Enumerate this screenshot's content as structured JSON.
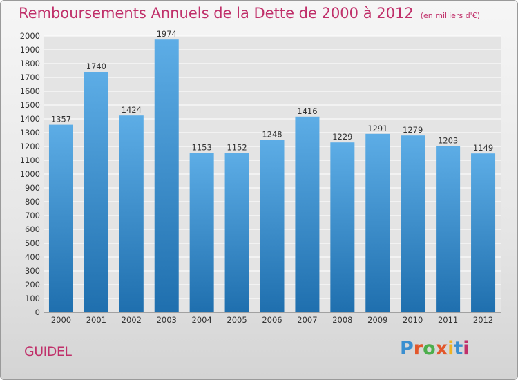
{
  "header": {
    "title": "Remboursements Annuels de la Dette de 2000 à 2012",
    "subtitle": "(en milliers d'€)"
  },
  "footer": {
    "city": "GUIDEL",
    "logo_text": "Proxiti",
    "logo_colors": [
      "#3a8fd0",
      "#e2572b",
      "#4cae4c",
      "#e2572b",
      "#f0b323",
      "#3a8fd0",
      "#c0306a"
    ]
  },
  "colors": {
    "bar_light": "#5dade6",
    "bar_dark": "#1f6fae",
    "grid": "#ffffff",
    "title": "#c0306a"
  },
  "chart_data": {
    "type": "bar",
    "title": "Remboursements Annuels de la Dette de 2000 à 2012",
    "categories": [
      "2000",
      "2001",
      "2002",
      "2003",
      "2004",
      "2005",
      "2006",
      "2007",
      "2008",
      "2009",
      "2010",
      "2011",
      "2012"
    ],
    "values": [
      1357,
      1740,
      1424,
      1974,
      1153,
      1152,
      1248,
      1416,
      1229,
      1291,
      1279,
      1203,
      1149
    ],
    "ylim": [
      0,
      2000
    ],
    "ytick_step": 100,
    "grid": true,
    "legend": "none"
  }
}
